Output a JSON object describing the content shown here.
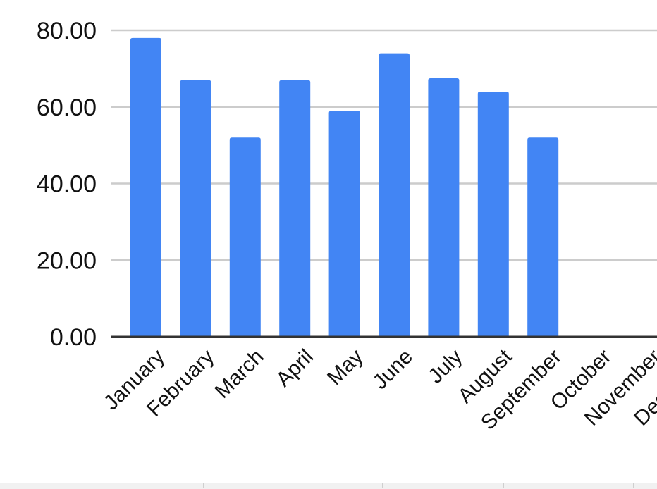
{
  "chart_data": {
    "type": "bar",
    "categories": [
      "January",
      "February",
      "March",
      "April",
      "May",
      "June",
      "July",
      "August",
      "September",
      "October",
      "November",
      "December"
    ],
    "values": [
      78,
      67,
      52,
      67,
      59,
      74,
      67.5,
      64,
      52,
      null,
      null,
      null
    ],
    "ylim": [
      0,
      80
    ],
    "yticks": [
      "0.00",
      "20.00",
      "40.00",
      "60.00",
      "80.00"
    ],
    "grid": true,
    "title": "",
    "xlabel": "",
    "ylabel": "",
    "colors": {
      "bar": "#4285f4",
      "grid": "#cccccc",
      "axis": "#333333",
      "text": "#111111"
    }
  }
}
